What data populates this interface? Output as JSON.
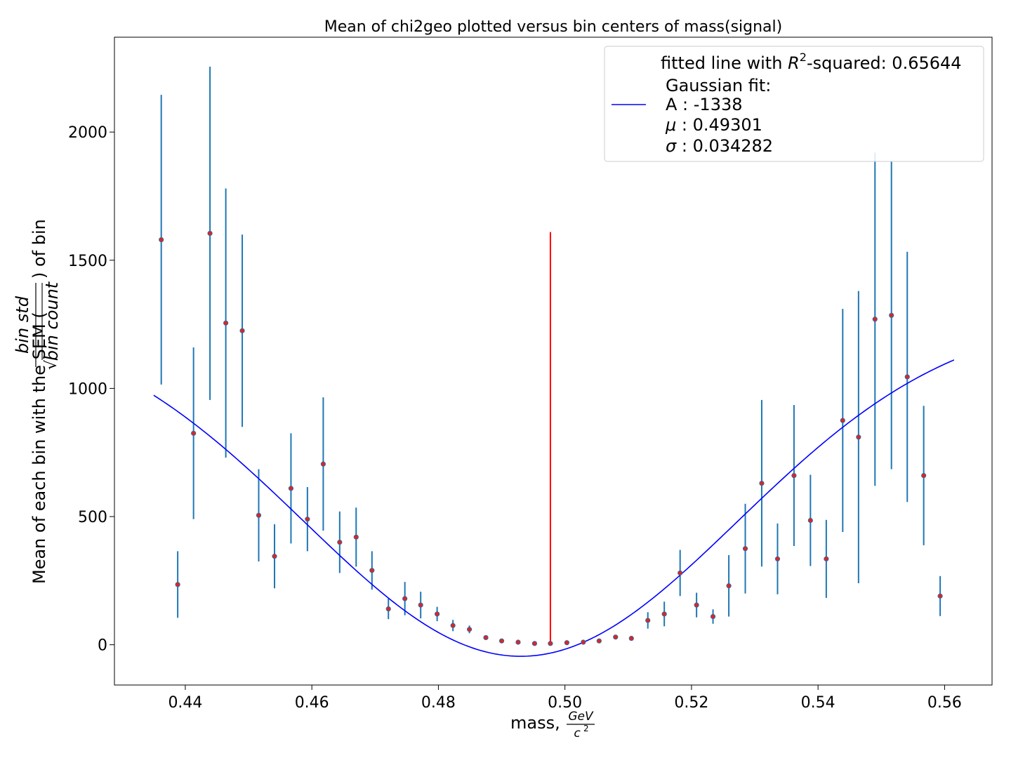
{
  "chart_data": {
    "type": "scatter",
    "title": "Mean of chi2geo plotted versus bin centers of mass(signal)",
    "xlabel": {
      "prefix": "mass, ",
      "frac_num": "GeV",
      "frac_den": "c",
      "frac_den_sup": "2"
    },
    "ylabel": {
      "prefix": "Mean of each bin with the SEM (",
      "frac_num": "bin std",
      "frac_den": "bin count",
      "suffix": ") of bin"
    },
    "xlim": [
      0.4288,
      0.5675
    ],
    "ylim": [
      -157,
      2370
    ],
    "x_ticks": [
      0.44,
      0.46,
      0.48,
      0.5,
      0.52,
      0.54,
      0.56
    ],
    "x_tick_labels": [
      "0.44",
      "0.46",
      "0.48",
      "0.50",
      "0.52",
      "0.54",
      "0.56"
    ],
    "y_ticks": [
      0,
      500,
      1000,
      1500,
      2000
    ],
    "y_tick_labels": [
      "0",
      "500",
      "1000",
      "1500",
      "2000"
    ],
    "grid": false,
    "legend_placement": "upper right",
    "legend": {
      "line1_prefix": "fitted line with ",
      "line1_sym": "R",
      "line1_sup": "2",
      "line1_suffix": "-squared: 0.65644",
      "line2": "Gaussian fit:",
      "line3": "A : -1338",
      "line4_sym": "μ",
      "line4_val": " : 0.49301",
      "line5_sym": "σ",
      "line5_val": " : 0.034282"
    },
    "colors": {
      "points": "#d62728",
      "point_edge": "#2a6fa8",
      "errorbars": "#1f77b4",
      "fit_line": "#0000ff",
      "marker_line": "#ff0000"
    },
    "points": {
      "x": [
        0.4362,
        0.4388,
        0.4413,
        0.4439,
        0.4464,
        0.449,
        0.4516,
        0.4541,
        0.4567,
        0.4593,
        0.4618,
        0.4644,
        0.467,
        0.4695,
        0.4721,
        0.4747,
        0.4772,
        0.4798,
        0.4823,
        0.4849,
        0.4875,
        0.49,
        0.4926,
        0.4952,
        0.4977,
        0.5003,
        0.5029,
        0.5054,
        0.508,
        0.5105,
        0.5131,
        0.5157,
        0.5182,
        0.5208,
        0.5234,
        0.5259,
        0.5285,
        0.5311,
        0.5336,
        0.5362,
        0.5388,
        0.5413,
        0.5439,
        0.5464,
        0.549,
        0.5516,
        0.5541,
        0.5567,
        0.5593
      ],
      "y": [
        1580,
        235,
        825,
        1605,
        1255,
        1225,
        505,
        345,
        610,
        490,
        705,
        400,
        420,
        290,
        140,
        180,
        155,
        120,
        75,
        60,
        28,
        15,
        10,
        5,
        5,
        8,
        10,
        15,
        30,
        25,
        95,
        120,
        280,
        155,
        110,
        230,
        375,
        630,
        335,
        660,
        485,
        335,
        875,
        810,
        1270,
        1285,
        1045,
        660,
        190
      ],
      "err": [
        565,
        130,
        335,
        650,
        525,
        375,
        180,
        125,
        215,
        125,
        260,
        120,
        115,
        75,
        40,
        65,
        52,
        28,
        22,
        15,
        8,
        6,
        5,
        4,
        4,
        4,
        5,
        6,
        8,
        8,
        32,
        48,
        90,
        48,
        28,
        120,
        175,
        325,
        138,
        275,
        178,
        152,
        435,
        570,
        650,
        600,
        488,
        272,
        78
      ]
    },
    "fit": {
      "A": -1338,
      "mu": 0.49301,
      "sigma": 0.034282,
      "offset": 1293,
      "x_start": 0.435,
      "x_end": 0.5615
    },
    "marker_line": {
      "x": 0.4977,
      "y0": 0,
      "y1": 1610
    }
  }
}
